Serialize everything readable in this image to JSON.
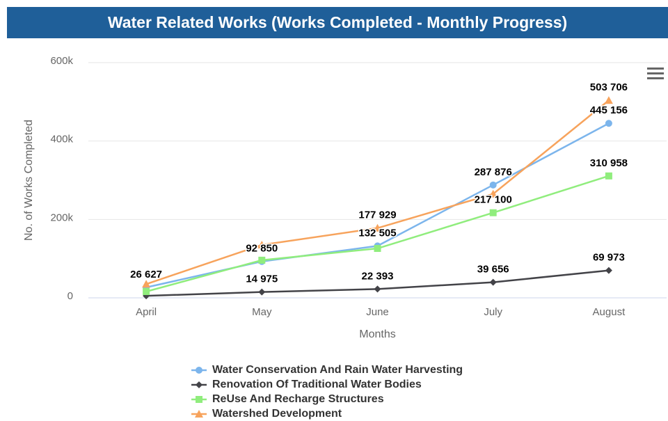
{
  "chart_data": {
    "type": "line",
    "title": "Water Related Works (Works Completed - Monthly Progress)",
    "x_label": "Months",
    "y_label": "No. of Works Completed",
    "categories": [
      "April",
      "May",
      "June",
      "July",
      "August"
    ],
    "ylim": [
      0,
      600000
    ],
    "yticks": [
      0,
      {
        "value": 200000,
        "label": "200k"
      },
      {
        "value": 400000,
        "label": "400k"
      },
      {
        "value": 600000,
        "label": "600k"
      }
    ],
    "grid": true,
    "series": [
      {
        "name": "Water Conservation And Rain Water Harvesting",
        "color": "#7cb5ec",
        "marker": "circle",
        "values": [
          26627,
          92850,
          132505,
          287876,
          445156
        ],
        "value_labels": [
          "26 627",
          "92 850",
          "132 505",
          "287 876",
          "445 156"
        ]
      },
      {
        "name": "Renovation Of Traditional Water Bodies",
        "color": "#434348",
        "marker": "diamond",
        "values": [
          5000,
          14975,
          22393,
          39656,
          69973
        ],
        "value_labels": [
          null,
          "14 975",
          "22 393",
          "39 656",
          "69 973"
        ]
      },
      {
        "name": "ReUse And Recharge Structures",
        "color": "#90ed7d",
        "marker": "square",
        "values": [
          16000,
          96000,
          126000,
          217100,
          310958
        ],
        "value_labels": [
          null,
          null,
          null,
          "217 100",
          "310 958"
        ]
      },
      {
        "name": "Watershed Development",
        "color": "#f7a35c",
        "marker": "triangle",
        "values": [
          35000,
          135000,
          177929,
          265000,
          503706
        ],
        "value_labels": [
          null,
          null,
          "177 929",
          null,
          "503 706"
        ]
      }
    ]
  }
}
